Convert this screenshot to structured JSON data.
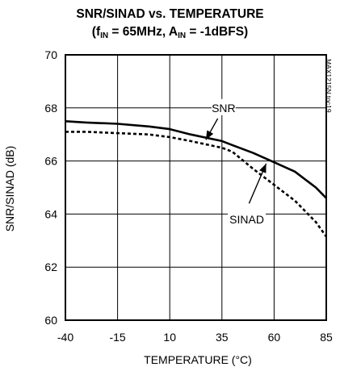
{
  "chart_data": {
    "type": "line",
    "title": "SNR/SINAD vs. TEMPERATURE",
    "subtitle": {
      "open": "(f",
      "f_sub": "IN",
      "mid": " = 65MHz, A",
      "a_sub": "IN",
      "close": " = -1dBFS)"
    },
    "xlabel": "TEMPERATURE (°C)",
    "ylabel": "SNR/SINAD (dB)",
    "xlim": [
      -40,
      85
    ],
    "ylim": [
      60,
      70
    ],
    "xticks": [
      -40,
      -15,
      10,
      35,
      60,
      85
    ],
    "yticks": [
      60,
      62,
      64,
      66,
      68,
      70
    ],
    "x_tick_labels": [
      "-40",
      "-15",
      "10",
      "35",
      "60",
      "85"
    ],
    "y_tick_labels": [
      "60",
      "62",
      "64",
      "66",
      "68",
      "70"
    ],
    "grid": true,
    "watermark": "MAX1215N toc19",
    "series": [
      {
        "name": "SNR",
        "style": "solid",
        "x": [
          -40,
          -30,
          -15,
          0,
          10,
          20,
          35,
          40,
          50,
          60,
          70,
          80,
          85
        ],
        "y": [
          67.5,
          67.45,
          67.4,
          67.3,
          67.2,
          67.0,
          66.75,
          66.6,
          66.3,
          65.95,
          65.6,
          65.0,
          64.6
        ]
      },
      {
        "name": "SINAD",
        "style": "dashed",
        "x": [
          -40,
          -30,
          -15,
          0,
          10,
          20,
          35,
          40,
          50,
          60,
          70,
          80,
          85
        ],
        "y": [
          67.1,
          67.1,
          67.05,
          67.0,
          66.9,
          66.75,
          66.5,
          66.35,
          65.7,
          65.1,
          64.5,
          63.7,
          63.15
        ]
      }
    ],
    "annotations": [
      {
        "text": "SNR",
        "label_x": 35.8,
        "label_y": 68.0,
        "arrow_from": [
          33,
          67.6
        ],
        "arrow_to": [
          27.3,
          66.8
        ]
      },
      {
        "text": "SINAD",
        "label_x": 46.9,
        "label_y": 63.8,
        "arrow_from": [
          48,
          64.4
        ],
        "arrow_to": [
          56.2,
          65.9
        ]
      }
    ],
    "colors": {
      "line": "#000000",
      "grid": "#000000",
      "background": "#ffffff"
    }
  }
}
